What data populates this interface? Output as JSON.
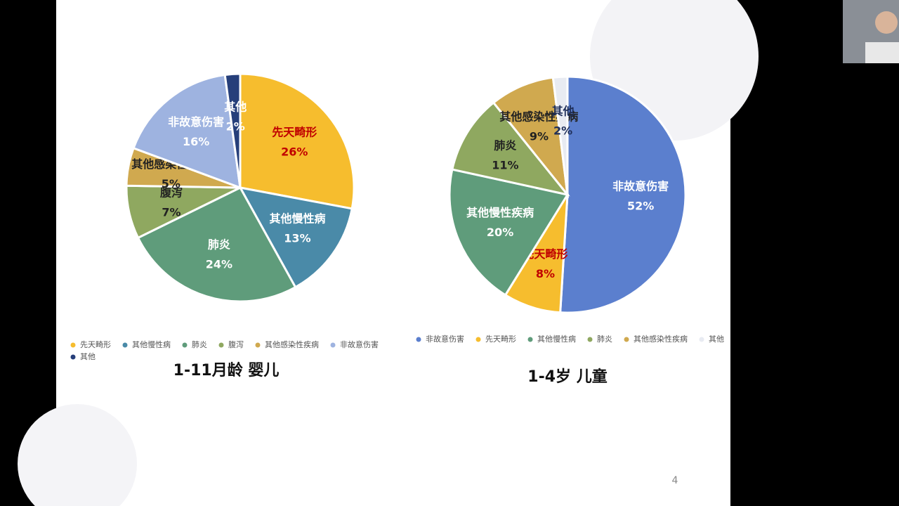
{
  "chart_data": [
    {
      "type": "pie",
      "title": "1-11月龄 婴儿",
      "categories": [
        "先天畸形",
        "其他慢性病",
        "肺炎",
        "腹泻",
        "其他感染性疾病",
        "非故意伤害",
        "其他"
      ],
      "values": [
        26,
        13,
        24,
        7,
        5,
        16,
        2
      ],
      "value_labels": [
        "26%",
        "13%",
        "24%",
        "7%",
        "5%",
        "16%",
        "2%"
      ],
      "colors": [
        "#f6bd2e",
        "#4a8aa8",
        "#5f9c7b",
        "#8fa860",
        "#d0a94f",
        "#9eb3e0",
        "#263f7a"
      ],
      "label_colors": [
        "#c00000",
        "#ffffff",
        "#ffffff",
        "#222222",
        "#222222",
        "#ffffff",
        "#ffffff"
      ]
    },
    {
      "type": "pie",
      "title": "1-4岁 儿童",
      "categories": [
        "非故意伤害",
        "先天畸形",
        "其他慢性病",
        "肺炎",
        "其他感染性疾病",
        "其他"
      ],
      "slice_labels": [
        "非故意伤害",
        "先天畸形",
        "其他慢性疾病",
        "肺炎",
        "其他感染性疾病",
        "其他"
      ],
      "values": [
        52,
        8,
        20,
        11,
        9,
        2
      ],
      "value_labels": [
        "52%",
        "8%",
        "20%",
        "11%",
        "9%",
        "2%"
      ],
      "colors": [
        "#5b7fce",
        "#f6bd2e",
        "#5f9c7b",
        "#8fa860",
        "#d0a94f",
        "#e8ebf2"
      ],
      "label_colors": [
        "#ffffff",
        "#c00000",
        "#ffffff",
        "#222222",
        "#222222",
        "#1f2f5a"
      ]
    }
  ],
  "page_number": "4"
}
